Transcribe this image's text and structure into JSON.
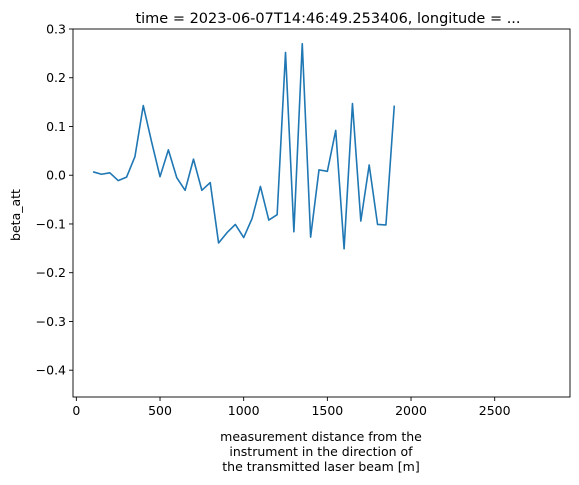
{
  "chart_data": {
    "type": "line",
    "title": "time = 2023-06-07T14:46:49.253406, longitude = ...",
    "xlabel_lines": [
      "measurement distance from the",
      "instrument in the direction of",
      "the transmitted laser beam [m]"
    ],
    "ylabel": "beta_att",
    "xlim": [
      -20,
      2950
    ],
    "ylim": [
      -0.455,
      0.3
    ],
    "xticks": [
      0,
      500,
      1000,
      1500,
      2000,
      2500
    ],
    "yticks": [
      -0.4,
      -0.3,
      -0.2,
      -0.1,
      0.0,
      0.1,
      0.2,
      0.3
    ],
    "xtick_labels": [
      "0",
      "500",
      "1000",
      "1500",
      "2000",
      "2500"
    ],
    "ytick_labels": [
      "−0.4",
      "−0.3",
      "−0.2",
      "−0.1",
      "0.0",
      "0.1",
      "0.2",
      "0.3"
    ],
    "grid": false,
    "series": [
      {
        "color": "#1f77b4",
        "x": [
          100,
          150,
          200,
          250,
          300,
          350,
          400,
          450,
          500,
          550,
          600,
          650,
          700,
          750,
          800,
          850,
          900,
          950,
          1000,
          1050,
          1100,
          1150,
          1200,
          1250,
          1300,
          1350,
          1400,
          1450,
          1500,
          1550,
          1600,
          1650,
          1700,
          1750,
          1800,
          1850,
          1900
        ],
        "y": [
          0.007,
          0.002,
          0.005,
          -0.011,
          -0.004,
          0.038,
          0.143,
          0.068,
          -0.003,
          0.052,
          -0.005,
          -0.031,
          0.033,
          -0.031,
          -0.015,
          -0.139,
          -0.118,
          -0.101,
          -0.128,
          -0.089,
          -0.023,
          -0.092,
          -0.081,
          0.252,
          -0.116,
          0.27,
          -0.127,
          0.011,
          0.008,
          0.092,
          -0.151,
          0.147,
          -0.094,
          0.021,
          -0.101,
          -0.102,
          0.143
        ]
      }
    ]
  }
}
